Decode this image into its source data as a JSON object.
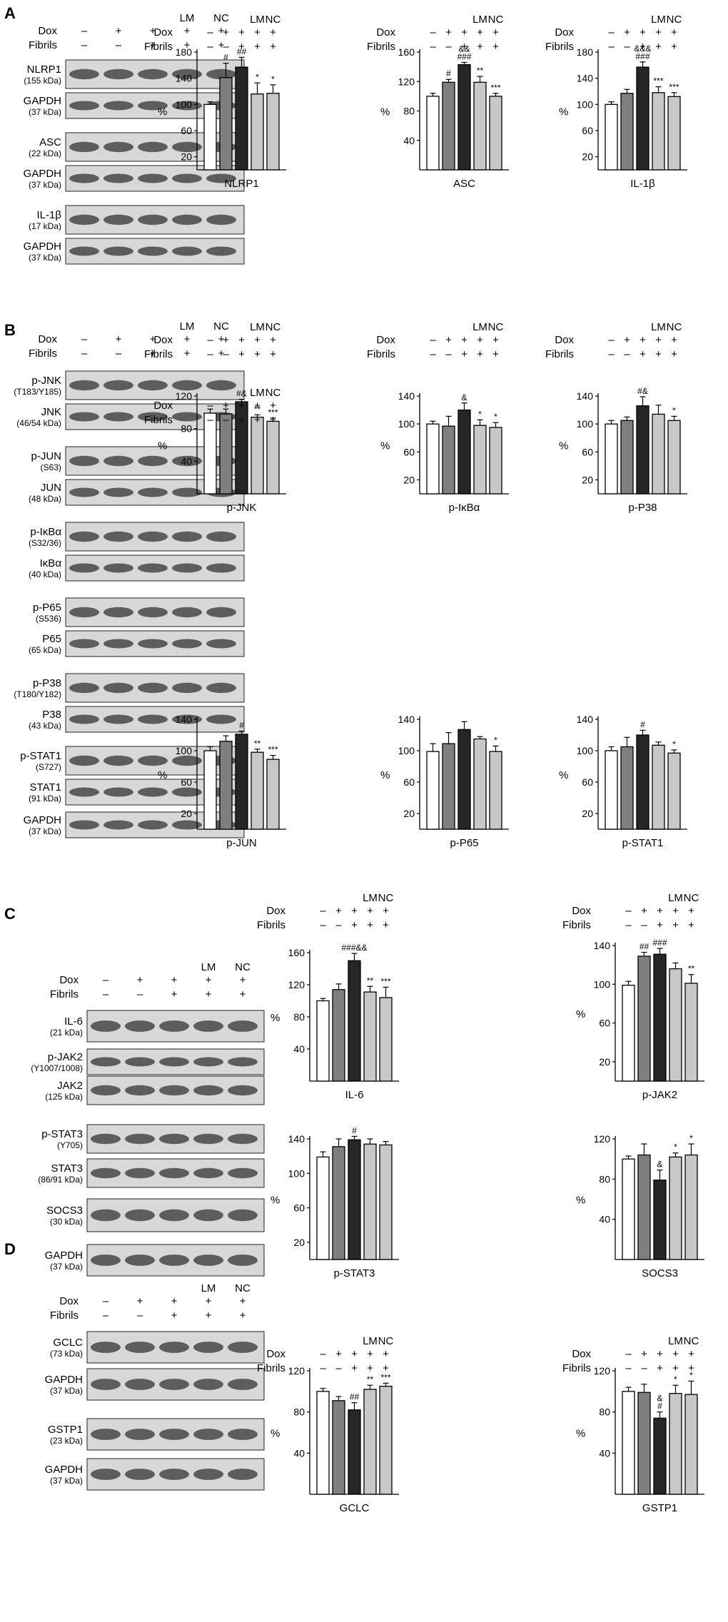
{
  "figure": {
    "panels": [
      {
        "letter": "A",
        "blot": {
          "columns": [
            "",
            "",
            "",
            "LM",
            "NC"
          ],
          "dox": [
            "–",
            "+",
            "+",
            "+",
            "+"
          ],
          "fibrils": [
            "–",
            "–",
            "+",
            "+",
            "+"
          ],
          "rows": [
            {
              "name": "NLRP1",
              "kda": "(155 kDa)"
            },
            {
              "name": "GAPDH",
              "kda": "(37 kDa)"
            },
            {
              "name": "ASC",
              "kda": "(22 kDa)"
            },
            {
              "name": "GAPDH",
              "kda": "(37 kDa)"
            },
            {
              "name": "IL-1β",
              "kda": "(17 kDa)"
            },
            {
              "name": "GAPDH",
              "kda": "(37 kDa)"
            }
          ]
        }
      },
      {
        "letter": "B",
        "blot": {
          "columns": [
            "",
            "",
            "",
            "LM",
            "NC"
          ],
          "dox": [
            "–",
            "+",
            "+",
            "+",
            "+"
          ],
          "fibrils": [
            "–",
            "–",
            "+",
            "+",
            "+"
          ],
          "rows": [
            {
              "name": "p-JNK",
              "kda": "(T183/Y185)"
            },
            {
              "name": "JNK",
              "kda": "(46/54 kDa)"
            },
            {
              "name": "p-JUN",
              "kda": "(S63)"
            },
            {
              "name": "JUN",
              "kda": "(48 kDa)"
            },
            {
              "name": "p-IκBα",
              "kda": "(S32/36)"
            },
            {
              "name": "IκBα",
              "kda": "(40 kDa)"
            },
            {
              "name": "p-P65",
              "kda": "(S536)"
            },
            {
              "name": "P65",
              "kda": "(65 kDa)"
            },
            {
              "name": "p-P38",
              "kda": "(T180/Y182)"
            },
            {
              "name": "P38",
              "kda": "(43 kDa)"
            },
            {
              "name": "p-STAT1",
              "kda": "(S727)"
            },
            {
              "name": "STAT1",
              "kda": "(91 kDa)"
            },
            {
              "name": "GAPDH",
              "kda": "(37 kDa)"
            }
          ]
        }
      },
      {
        "letter": "C",
        "blot": {
          "columns": [
            "",
            "",
            "",
            "LM",
            "NC"
          ],
          "dox": [
            "–",
            "+",
            "+",
            "+",
            "+"
          ],
          "fibrils": [
            "–",
            "–",
            "+",
            "+",
            "+"
          ],
          "rows": [
            {
              "name": "IL-6",
              "kda": "(21 kDa)"
            },
            {
              "name": "p-JAK2",
              "kda": "(Y1007/1008)"
            },
            {
              "name": "JAK2",
              "kda": "(125 kDa)"
            },
            {
              "name": "p-STAT3",
              "kda": "(Y705)"
            },
            {
              "name": "STAT3",
              "kda": "(86/91 kDa)"
            },
            {
              "name": "SOCS3",
              "kda": "(30 kDa)"
            },
            {
              "name": "GAPDH",
              "kda": "(37 kDa)"
            }
          ]
        }
      },
      {
        "letter": "D",
        "blot": {
          "columns": [
            "",
            "",
            "",
            "LM",
            "NC"
          ],
          "dox": [
            "–",
            "+",
            "+",
            "+",
            "+"
          ],
          "fibrils": [
            "–",
            "–",
            "+",
            "+",
            "+"
          ],
          "rows": [
            {
              "name": "GCLC",
              "kda": "(73 kDa)"
            },
            {
              "name": "GAPDH",
              "kda": "(37 kDa)"
            },
            {
              "name": "GSTP1",
              "kda": "(23 kDa)"
            },
            {
              "name": "GAPDH",
              "kda": "(37 kDa)"
            }
          ]
        }
      }
    ],
    "row_labels": {
      "dox": "Dox",
      "fibrils": "Fibrils"
    },
    "bar_colors": [
      "#ffffff",
      "#7f7f7f",
      "#262626",
      "#c8c8c8",
      "#c8c8c8"
    ]
  },
  "chart_data": [
    {
      "type": "bar",
      "panel": "A",
      "xlabel": "NLRP1",
      "ylabel": "%",
      "ylim": [
        0,
        180
      ],
      "yticks": [
        20,
        60,
        100,
        140,
        180
      ],
      "conditions": {
        "columns": [
          "",
          "",
          "",
          "LM",
          "NC"
        ],
        "dox": [
          "–",
          "+",
          "+",
          "+",
          "+"
        ],
        "fibrils": [
          "–",
          "–",
          "+",
          "+",
          "+"
        ]
      },
      "values": [
        100,
        141,
        157,
        116,
        117
      ],
      "errors": [
        4,
        22,
        15,
        17,
        13
      ],
      "annotations": [
        "",
        "#",
        "##",
        "*",
        "*"
      ]
    },
    {
      "type": "bar",
      "panel": "A",
      "xlabel": "ASC",
      "ylabel": "%",
      "ylim": [
        0,
        160
      ],
      "yticks": [
        40,
        80,
        120,
        160
      ],
      "conditions": {
        "columns": [
          "",
          "",
          "",
          "LM",
          "NC"
        ],
        "dox": [
          "–",
          "+",
          "+",
          "+",
          "+"
        ],
        "fibrils": [
          "–",
          "–",
          "+",
          "+",
          "+"
        ]
      },
      "values": [
        100,
        119,
        143,
        119,
        100
      ],
      "errors": [
        4,
        4,
        3,
        8,
        4
      ],
      "annotations": [
        "",
        "#",
        "&&\n###",
        "**",
        "***"
      ]
    },
    {
      "type": "bar",
      "panel": "A",
      "xlabel": "IL-1β",
      "ylabel": "%",
      "ylim": [
        0,
        180
      ],
      "yticks": [
        20,
        60,
        100,
        140,
        180
      ],
      "conditions": {
        "columns": [
          "",
          "",
          "",
          "LM",
          "NC"
        ],
        "dox": [
          "–",
          "+",
          "+",
          "+",
          "+"
        ],
        "fibrils": [
          "–",
          "–",
          "+",
          "+",
          "+"
        ]
      },
      "values": [
        100,
        117,
        157,
        118,
        112
      ],
      "errors": [
        4,
        6,
        8,
        9,
        6
      ],
      "annotations": [
        "",
        "",
        "&&&\n###",
        "***",
        "***"
      ]
    },
    {
      "type": "bar",
      "panel": "B",
      "xlabel": "p-JNK",
      "ylabel": "%",
      "ylim": [
        0,
        120
      ],
      "yticks": [
        40,
        80,
        120
      ],
      "conditions": {
        "columns": [
          "",
          "",
          "",
          "LM",
          "NC"
        ],
        "dox": [
          "–",
          "+",
          "+",
          "+",
          "+"
        ],
        "fibrils": [
          "–",
          "–",
          "+",
          "+",
          "+"
        ]
      },
      "values": [
        99,
        98,
        113,
        94,
        89
      ],
      "errors": [
        5,
        6,
        3,
        3,
        4
      ],
      "annotations": [
        "",
        "",
        "#&",
        "**",
        "***"
      ]
    },
    {
      "type": "bar",
      "panel": "B",
      "xlabel": "p-IκBα",
      "ylabel": "%",
      "ylim": [
        0,
        140
      ],
      "yticks": [
        20,
        60,
        100,
        140
      ],
      "conditions": {
        "columns": [
          "",
          "",
          "",
          "LM",
          "NC"
        ],
        "dox": [
          "–",
          "+",
          "+",
          "+",
          "+"
        ],
        "fibrils": [
          "–",
          "–",
          "+",
          "+",
          "+"
        ]
      },
      "values": [
        100,
        97,
        120,
        98,
        95
      ],
      "errors": [
        4,
        14,
        10,
        8,
        7
      ],
      "annotations": [
        "",
        "",
        "&",
        "*",
        "*"
      ]
    },
    {
      "type": "bar",
      "panel": "B",
      "xlabel": "p-P38",
      "ylabel": "%",
      "ylim": [
        0,
        140
      ],
      "yticks": [
        20,
        60,
        100,
        140
      ],
      "conditions": {
        "columns": [
          "",
          "",
          "",
          "LM",
          "NC"
        ],
        "dox": [
          "–",
          "+",
          "+",
          "+",
          "+"
        ],
        "fibrils": [
          "–",
          "–",
          "+",
          "+",
          "+"
        ]
      },
      "values": [
        100,
        105,
        126,
        114,
        105
      ],
      "errors": [
        5,
        5,
        13,
        13,
        6
      ],
      "annotations": [
        "",
        "",
        "#&",
        "",
        "*"
      ]
    },
    {
      "type": "bar",
      "panel": "B",
      "xlabel": "p-JUN",
      "ylabel": "%",
      "ylim": [
        0,
        140
      ],
      "yticks": [
        20,
        60,
        100,
        140
      ],
      "conditions": {
        "columns": [
          "",
          "",
          "",
          "LM",
          "NC"
        ],
        "dox": [
          "–",
          "+",
          "+",
          "+",
          "+"
        ],
        "fibrils": [
          "–",
          "–",
          "+",
          "+",
          "+"
        ]
      },
      "values": [
        100,
        112,
        121,
        98,
        89
      ],
      "errors": [
        5,
        7,
        4,
        4,
        5
      ],
      "annotations": [
        "",
        "",
        "#",
        "**",
        "***"
      ]
    },
    {
      "type": "bar",
      "panel": "B",
      "xlabel": "p-P65",
      "ylabel": "%",
      "ylim": [
        0,
        140
      ],
      "yticks": [
        20,
        60,
        100,
        140
      ],
      "conditions": {
        "columns": [
          "",
          "",
          "",
          "LM",
          "NC"
        ],
        "dox": [
          "–",
          "+",
          "+",
          "+",
          "+"
        ],
        "fibrils": [
          "–",
          "–",
          "+",
          "+",
          "+"
        ]
      },
      "values": [
        99,
        109,
        127,
        115,
        99
      ],
      "errors": [
        10,
        14,
        10,
        3,
        7
      ],
      "annotations": [
        "",
        "",
        "",
        "",
        "*"
      ]
    },
    {
      "type": "bar",
      "panel": "B",
      "xlabel": "p-STAT1",
      "ylabel": "%",
      "ylim": [
        0,
        140
      ],
      "yticks": [
        20,
        60,
        100,
        140
      ],
      "conditions": {
        "columns": [
          "",
          "",
          "",
          "LM",
          "NC"
        ],
        "dox": [
          "–",
          "+",
          "+",
          "+",
          "+"
        ],
        "fibrils": [
          "–",
          "–",
          "+",
          "+",
          "+"
        ]
      },
      "values": [
        100,
        105,
        120,
        107,
        97
      ],
      "errors": [
        5,
        12,
        6,
        4,
        4
      ],
      "annotations": [
        "",
        "",
        "#",
        "",
        "*"
      ]
    },
    {
      "type": "bar",
      "panel": "C",
      "xlabel": "IL-6",
      "ylabel": "%",
      "ylim": [
        0,
        160
      ],
      "yticks": [
        40,
        80,
        120,
        160
      ],
      "conditions": {
        "columns": [
          "",
          "",
          "",
          "LM",
          "NC"
        ],
        "dox": [
          "–",
          "+",
          "+",
          "+",
          "+"
        ],
        "fibrils": [
          "–",
          "–",
          "+",
          "+",
          "+"
        ]
      },
      "values": [
        100,
        114,
        150,
        111,
        104
      ],
      "errors": [
        3,
        7,
        9,
        7,
        13
      ],
      "annotations": [
        "",
        "",
        "###&&",
        "**",
        "***"
      ]
    },
    {
      "type": "bar",
      "panel": "C",
      "xlabel": "p-JAK2",
      "ylabel": "%",
      "ylim": [
        0,
        140
      ],
      "yticks": [
        20,
        60,
        100,
        140
      ],
      "conditions": {
        "columns": [
          "",
          "",
          "",
          "LM",
          "NC"
        ],
        "dox": [
          "–",
          "+",
          "+",
          "+",
          "+"
        ],
        "fibrils": [
          "–",
          "–",
          "+",
          "+",
          "+"
        ]
      },
      "values": [
        99,
        129,
        131,
        116,
        101
      ],
      "errors": [
        4,
        4,
        6,
        6,
        9
      ],
      "annotations": [
        "",
        "##",
        "###",
        "",
        "**"
      ]
    },
    {
      "type": "bar",
      "panel": "C",
      "xlabel": "p-STAT3",
      "ylabel": "%",
      "ylim": [
        0,
        140
      ],
      "yticks": [
        20,
        60,
        100,
        140
      ],
      "conditions": {
        "columns": [
          "",
          "",
          "",
          "LM",
          "NC"
        ],
        "dox": [
          "–",
          "+",
          "+",
          "+",
          "+"
        ],
        "fibrils": [
          "–",
          "–",
          "+",
          "+",
          "+"
        ]
      },
      "values": [
        119,
        131,
        139,
        134,
        133
      ],
      "errors": [
        6,
        9,
        4,
        6,
        4
      ],
      "annotations": [
        "",
        "",
        "#",
        "",
        ""
      ]
    },
    {
      "type": "bar",
      "panel": "C",
      "xlabel": "SOCS3",
      "ylabel": "%",
      "ylim": [
        0,
        120
      ],
      "yticks": [
        40,
        80,
        120
      ],
      "conditions": {
        "columns": [
          "",
          "",
          "",
          "LM",
          "NC"
        ],
        "dox": [
          "–",
          "+",
          "+",
          "+",
          "+"
        ],
        "fibrils": [
          "–",
          "–",
          "+",
          "+",
          "+"
        ]
      },
      "values": [
        100,
        104,
        79,
        102,
        104
      ],
      "errors": [
        3,
        11,
        10,
        4,
        11
      ],
      "annotations": [
        "",
        "",
        "&",
        "*",
        "*"
      ]
    },
    {
      "type": "bar",
      "panel": "D",
      "xlabel": "GCLC",
      "ylabel": "%",
      "ylim": [
        0,
        120
      ],
      "yticks": [
        40,
        80,
        120
      ],
      "conditions": {
        "columns": [
          "",
          "",
          "",
          "LM",
          "NC"
        ],
        "dox": [
          "–",
          "+",
          "+",
          "+",
          "+"
        ],
        "fibrils": [
          "–",
          "–",
          "+",
          "+",
          "+"
        ]
      },
      "values": [
        100,
        91,
        82,
        102,
        105
      ],
      "errors": [
        3,
        4,
        7,
        4,
        3
      ],
      "annotations": [
        "",
        "",
        "##",
        "**",
        "***"
      ]
    },
    {
      "type": "bar",
      "panel": "D",
      "xlabel": "GSTP1",
      "ylabel": "%",
      "ylim": [
        0,
        120
      ],
      "yticks": [
        40,
        80,
        120
      ],
      "conditions": {
        "columns": [
          "",
          "",
          "",
          "LM",
          "NC"
        ],
        "dox": [
          "–",
          "+",
          "+",
          "+",
          "+"
        ],
        "fibrils": [
          "–",
          "–",
          "+",
          "+",
          "+"
        ]
      },
      "values": [
        100,
        99,
        74,
        98,
        97
      ],
      "errors": [
        4,
        8,
        6,
        8,
        13
      ],
      "annotations": [
        "",
        "",
        "&\n#",
        "*",
        "*"
      ]
    }
  ]
}
